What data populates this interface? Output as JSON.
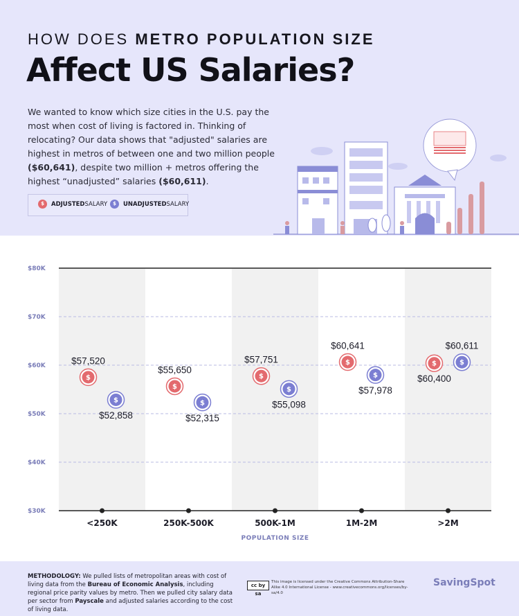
{
  "header": {
    "kicker_plain": "HOW DOES ",
    "kicker_bold": "METRO POPULATION SIZE",
    "title": "Affect US Salaries?",
    "intro_1": "We wanted to know which size cities in the U.S. pay the most when cost of living is factored in. Thinking of relocating? Our data shows that \"adjusted\" salaries are highest in metros of between one and two million people ",
    "intro_bold_1": "($60,641)",
    "intro_2": ", despite two million + metros offering the highest “unadjusted” salaries ",
    "intro_bold_2": "($60,611)",
    "intro_3": "."
  },
  "legend": {
    "adjusted_bold": "ADJUSTED",
    "adjusted_rest": " SALARY",
    "unadjusted_bold": "UNADJUSTED",
    "unadjusted_rest": " SALARY",
    "marker_glyph": "$"
  },
  "colors": {
    "adjusted": "#e36a6e",
    "unadjusted": "#7b7ed2",
    "band": "#f1f1f1",
    "axis_text": "#7a7db8",
    "grid": "#b9bbe3"
  },
  "chart_data": {
    "type": "scatter",
    "categories": [
      "<250K",
      "250K-500K",
      "500K-1M",
      "1M-2M",
      ">2M"
    ],
    "series": [
      {
        "name": "ADJUSTED SALARY",
        "values": [
          57520,
          55650,
          57751,
          60641,
          60400
        ],
        "labels": [
          "$57,520",
          "$55,650",
          "$57,751",
          "$60,641",
          "$60,400"
        ]
      },
      {
        "name": "UNADJUSTED SALARY",
        "values": [
          52858,
          52315,
          55098,
          57978,
          60611
        ],
        "labels": [
          "$52,858",
          "$52,315",
          "$55,098",
          "$57,978",
          "$60,611"
        ]
      }
    ],
    "yticks": [
      30000,
      40000,
      50000,
      60000,
      70000,
      80000
    ],
    "ytick_labels": [
      "$30K",
      "$40K",
      "$50K",
      "$60K",
      "$70K",
      "$80K"
    ],
    "ylim": [
      30000,
      80000
    ],
    "xlabel": "POPULATION SIZE",
    "ylabel": "",
    "grid": true
  },
  "footer": {
    "method_bold_1": "METHODOLOGY:",
    "method_1": " We pulled lists of metropolitan areas with cost of living data from the ",
    "method_bold_2": "Bureau of Economic Analysis",
    "method_2": ", including regional price parity values by metro. Then we pulled city salary data per sector from ",
    "method_bold_3": "Payscale",
    "method_3": " and adjusted salaries according to the cost of living data.",
    "cc_badge": "cc by sa",
    "license": "This image is licensed under the Creative Commons Attribution-Share Alike 4.0 International License - www.creativecommons.org/licenses/by-sa/4.0",
    "brand": "SavingSpot"
  }
}
